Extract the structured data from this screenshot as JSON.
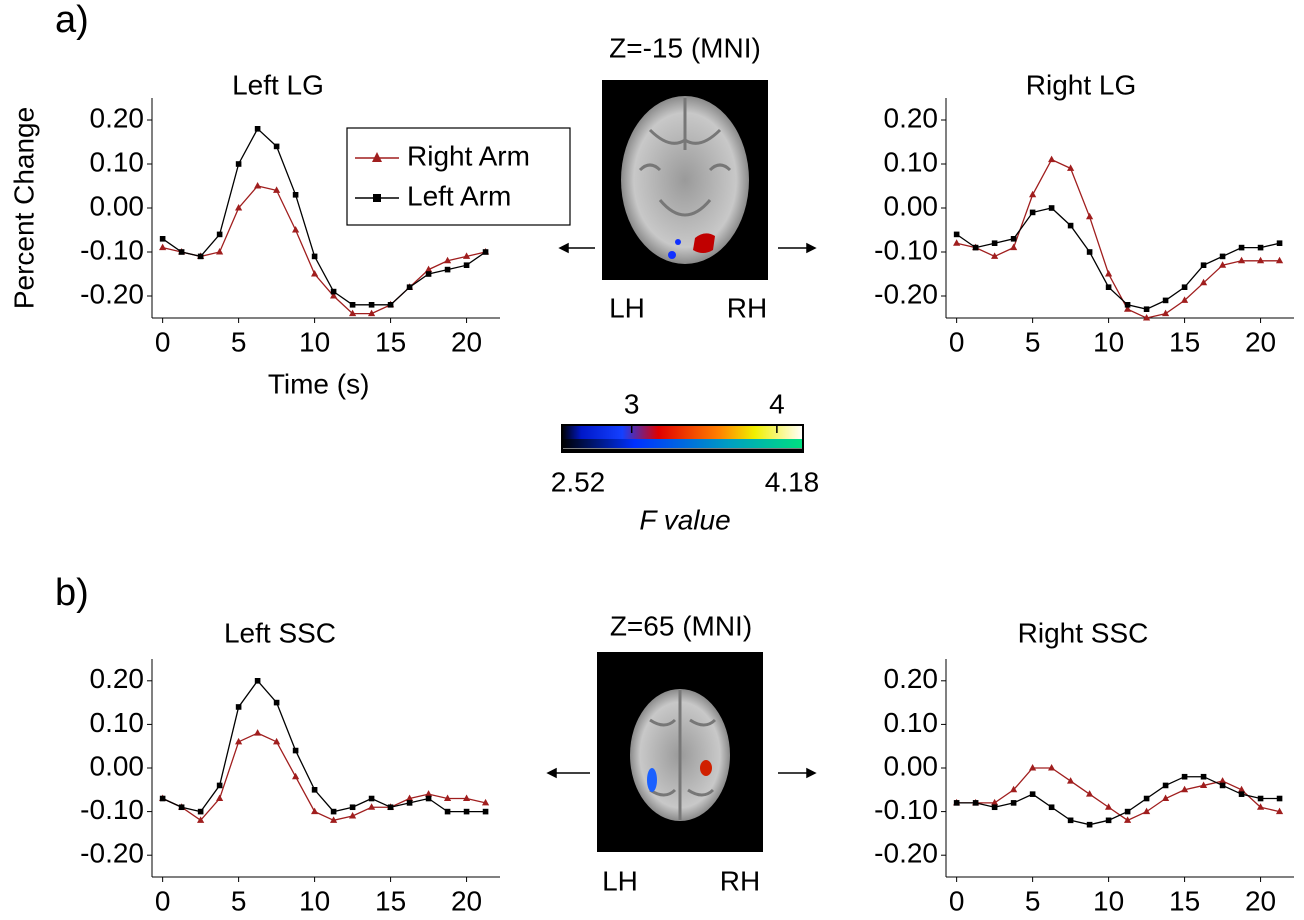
{
  "figure": {
    "panels": [
      "a)",
      "b)"
    ],
    "images": [
      {
        "title": "Z=-15 (MNI)",
        "left": "LH",
        "right": "RH"
      },
      {
        "title": "Z=65 (MNI)",
        "left": "LH",
        "right": "RH"
      }
    ],
    "colorbar": {
      "lim": [
        2.52,
        4.18
      ],
      "ticks": [
        3,
        4
      ],
      "label": "F value"
    }
  },
  "chart_data": [
    {
      "type": "line",
      "title": "Left LG",
      "ylabel": "Percent Change",
      "xlabel": "Time (s)",
      "legend": "upper right",
      "x": [
        0,
        1.25,
        2.5,
        3.75,
        5,
        6.25,
        7.5,
        8.75,
        10,
        11.25,
        12.5,
        13.75,
        15,
        16.25,
        17.5,
        18.75,
        20,
        21.25
      ],
      "series": [
        {
          "name": "Right Arm",
          "color": "#a01e1e",
          "marker": "triangle",
          "values": [
            -0.09,
            -0.1,
            -0.11,
            -0.1,
            0.0,
            0.05,
            0.04,
            -0.05,
            -0.15,
            -0.2,
            -0.24,
            -0.24,
            -0.22,
            -0.18,
            -0.14,
            -0.12,
            -0.11,
            -0.1
          ]
        },
        {
          "name": "Left Arm",
          "color": "#000000",
          "marker": "square",
          "values": [
            -0.07,
            -0.1,
            -0.11,
            -0.06,
            0.1,
            0.18,
            0.14,
            0.03,
            -0.11,
            -0.19,
            -0.22,
            -0.22,
            -0.22,
            -0.18,
            -0.15,
            -0.14,
            -0.13,
            -0.1
          ]
        }
      ],
      "xlim": [
        -0.7,
        22.2
      ],
      "ylim": [
        -0.25,
        0.25
      ],
      "xticks": [
        0,
        5,
        10,
        15,
        20
      ],
      "yticks": [
        {
          "value": 0.2,
          "label": "0.20"
        },
        {
          "value": 0.1,
          "label": "0.10"
        },
        {
          "value": 0,
          "label": "0.00"
        },
        {
          "value": -0.1,
          "label": "-0.10"
        },
        {
          "value": -0.2,
          "label": "-0.20"
        }
      ]
    },
    {
      "type": "line",
      "title": "Right LG",
      "x": [
        0,
        1.25,
        2.5,
        3.75,
        5,
        6.25,
        7.5,
        8.75,
        10,
        11.25,
        12.5,
        13.75,
        15,
        16.25,
        17.5,
        18.75,
        20,
        21.25
      ],
      "series": [
        {
          "color": "#a01e1e",
          "marker": "triangle",
          "values": [
            -0.08,
            -0.09,
            -0.11,
            -0.09,
            0.03,
            0.11,
            0.09,
            -0.02,
            -0.15,
            -0.23,
            -0.25,
            -0.24,
            -0.21,
            -0.17,
            -0.13,
            -0.12,
            -0.12,
            -0.12
          ]
        },
        {
          "color": "#000000",
          "marker": "square",
          "values": [
            -0.06,
            -0.09,
            -0.08,
            -0.07,
            -0.01,
            0.0,
            -0.04,
            -0.1,
            -0.18,
            -0.22,
            -0.23,
            -0.21,
            -0.18,
            -0.13,
            -0.11,
            -0.09,
            -0.09,
            -0.08
          ]
        }
      ],
      "xlim": [
        -0.7,
        22.2
      ],
      "ylim": [
        -0.25,
        0.25
      ],
      "xticks": [
        0,
        5,
        10,
        15,
        20
      ],
      "yticks": [
        {
          "value": 0.2,
          "label": "0.20"
        },
        {
          "value": 0.1,
          "label": "0.10"
        },
        {
          "value": 0,
          "label": "0.00"
        },
        {
          "value": -0.1,
          "label": "-0.10"
        },
        {
          "value": -0.2,
          "label": "-0.20"
        }
      ]
    },
    {
      "type": "line",
      "title": "Left SSC",
      "x": [
        0,
        1.25,
        2.5,
        3.75,
        5,
        6.25,
        7.5,
        8.75,
        10,
        11.25,
        12.5,
        13.75,
        15,
        16.25,
        17.5,
        18.75,
        20,
        21.25
      ],
      "series": [
        {
          "color": "#a01e1e",
          "marker": "triangle",
          "values": [
            -0.07,
            -0.09,
            -0.12,
            -0.07,
            0.06,
            0.08,
            0.06,
            -0.02,
            -0.1,
            -0.12,
            -0.11,
            -0.09,
            -0.09,
            -0.07,
            -0.06,
            -0.07,
            -0.07,
            -0.08
          ]
        },
        {
          "color": "#000000",
          "marker": "square",
          "values": [
            -0.07,
            -0.09,
            -0.1,
            -0.04,
            0.14,
            0.2,
            0.15,
            0.04,
            -0.05,
            -0.1,
            -0.09,
            -0.07,
            -0.09,
            -0.08,
            -0.07,
            -0.1,
            -0.1,
            -0.1
          ]
        }
      ],
      "xlim": [
        -0.7,
        22.2
      ],
      "ylim": [
        -0.25,
        0.25
      ],
      "xticks": [
        0,
        5,
        10,
        15,
        20
      ],
      "yticks": [
        {
          "value": 0.2,
          "label": "0.20"
        },
        {
          "value": 0.1,
          "label": "0.10"
        },
        {
          "value": 0,
          "label": "0.00"
        },
        {
          "value": -0.1,
          "label": "-0.10"
        },
        {
          "value": -0.2,
          "label": "-0.20"
        }
      ]
    },
    {
      "type": "line",
      "title": "Right SSC",
      "x": [
        0,
        1.25,
        2.5,
        3.75,
        5,
        6.25,
        7.5,
        8.75,
        10,
        11.25,
        12.5,
        13.75,
        15,
        16.25,
        17.5,
        18.75,
        20,
        21.25
      ],
      "series": [
        {
          "color": "#a01e1e",
          "marker": "triangle",
          "values": [
            -0.08,
            -0.08,
            -0.08,
            -0.05,
            0.0,
            0.0,
            -0.03,
            -0.06,
            -0.09,
            -0.12,
            -0.1,
            -0.07,
            -0.05,
            -0.04,
            -0.03,
            -0.05,
            -0.09,
            -0.1
          ]
        },
        {
          "color": "#000000",
          "marker": "square",
          "values": [
            -0.08,
            -0.08,
            -0.09,
            -0.08,
            -0.06,
            -0.09,
            -0.12,
            -0.13,
            -0.12,
            -0.1,
            -0.07,
            -0.04,
            -0.02,
            -0.02,
            -0.04,
            -0.06,
            -0.07,
            -0.07
          ]
        }
      ],
      "xlim": [
        -0.7,
        22.2
      ],
      "ylim": [
        -0.25,
        0.25
      ],
      "xticks": [
        0,
        5,
        10,
        15,
        20
      ],
      "yticks": [
        {
          "value": 0.2,
          "label": "0.20"
        },
        {
          "value": 0.1,
          "label": "0.10"
        },
        {
          "value": 0,
          "label": "0.00"
        },
        {
          "value": -0.1,
          "label": "-0.10"
        },
        {
          "value": -0.2,
          "label": "-0.20"
        }
      ]
    }
  ]
}
